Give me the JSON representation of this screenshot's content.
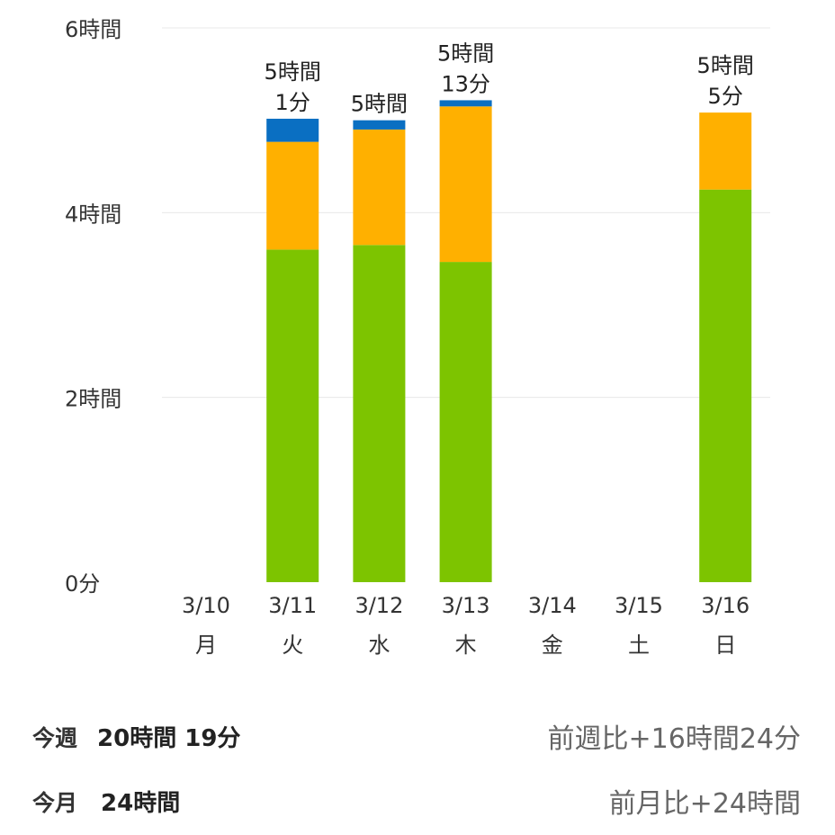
{
  "chart_data": {
    "type": "bar",
    "stacked": true,
    "categories": [
      "3/10",
      "3/11",
      "3/12",
      "3/13",
      "3/14",
      "3/15",
      "3/16"
    ],
    "weekdays": [
      "月",
      "火",
      "水",
      "木",
      "金",
      "土",
      "日"
    ],
    "y_ticks": [
      "0分",
      "2時間",
      "4時間",
      "6時間"
    ],
    "ylim_minutes": [
      0,
      360
    ],
    "grid": true,
    "series": [
      {
        "color": "#7dc400",
        "values_minutes": [
          0,
          216,
          219,
          208,
          0,
          0,
          255
        ]
      },
      {
        "color": "#ffb000",
        "values_minutes": [
          0,
          70,
          75,
          101,
          0,
          0,
          50
        ]
      },
      {
        "color": "#0a6fc2",
        "values_minutes": [
          0,
          15,
          6,
          4,
          0,
          0,
          0
        ]
      }
    ],
    "total_labels": [
      [],
      [
        "5時間",
        "1分"
      ],
      [
        "5時間"
      ],
      [
        "5時間",
        "13分"
      ],
      [],
      [],
      [
        "5時間",
        "5分"
      ]
    ]
  },
  "summary": {
    "week": {
      "label": "今週",
      "value": "20時間 19分",
      "compare": "前週比+16時間24分"
    },
    "month": {
      "label": "今月",
      "value": "24時間",
      "compare": "前月比+24時間"
    }
  }
}
